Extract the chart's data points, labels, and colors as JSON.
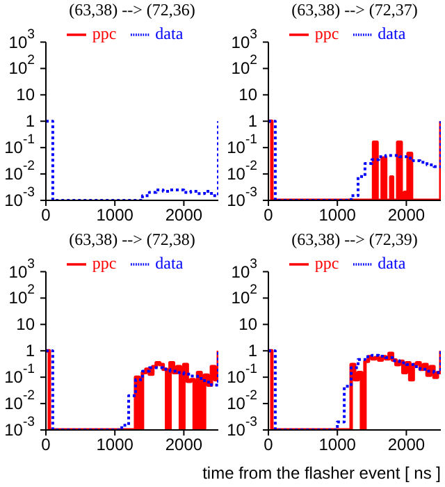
{
  "chart_data": [
    {
      "type": "line",
      "title": "(63,38) --> (72,36)",
      "xlim": [
        0,
        2500
      ],
      "xticks": [
        0,
        1000,
        2000
      ],
      "ylim": [
        0.001,
        1000
      ],
      "yticks": [
        {
          "value": 1000,
          "label": "10$^{3}$"
        },
        {
          "value": 100,
          "label": "10$^{2}$"
        },
        {
          "value": 10,
          "label": "10"
        },
        {
          "value": 1,
          "label": "1"
        },
        {
          "value": 0.1,
          "label": "10$^{-1}$"
        },
        {
          "value": 0.01,
          "label": "10$^{-2}$"
        },
        {
          "value": 0.001,
          "label": "10$^{-3}$"
        }
      ],
      "log": "y",
      "legend": "top",
      "series": [
        {
          "name": "ppc",
          "type": "step",
          "color": "#ff0000",
          "line_style": "solid"
        },
        {
          "name": "data",
          "type": "step",
          "color": "#0000ff",
          "line_style": "dotted",
          "x": [
            0,
            100,
            200,
            300,
            400,
            500,
            600,
            700,
            800,
            900,
            1000,
            1100,
            1200,
            1300,
            1400,
            1500,
            1600,
            1700,
            1800,
            1900,
            2000,
            2100,
            2200,
            2300,
            2400,
            2500
          ],
          "values": [
            1,
            0.001,
            0.001,
            0.001,
            0.001,
            0.001,
            0.001,
            0.001,
            0.001,
            0.001,
            0.001,
            0.001,
            0.001,
            0.001,
            0.0015,
            0.002,
            0.0025,
            0.0022,
            0.0025,
            0.0025,
            0.002,
            0.0022,
            0.0018,
            0.0022,
            0.0015,
            1
          ]
        }
      ]
    },
    {
      "type": "line",
      "title": "(63,38) --> (72,37)",
      "xlim": [
        0,
        2500
      ],
      "xticks": [
        0,
        1000,
        2000
      ],
      "ylim": [
        0.001,
        1000
      ],
      "yticks": [
        {
          "value": 1000,
          "label": "10$^{3}$"
        },
        {
          "value": 100,
          "label": "10$^{2}$"
        },
        {
          "value": 10,
          "label": "10"
        },
        {
          "value": 1,
          "label": "1"
        },
        {
          "value": 0.1,
          "label": "10$^{-1}$"
        },
        {
          "value": 0.01,
          "label": "10$^{-2}$"
        },
        {
          "value": 0.001,
          "label": "10$^{-3}$"
        }
      ],
      "log": "y",
      "legend": "top",
      "series": [
        {
          "name": "ppc",
          "type": "step",
          "color": "#ff0000",
          "line_style": "solid",
          "x": [
            0,
            50,
            1525,
            1575,
            1650,
            1700,
            1775,
            1800,
            1875,
            1925,
            1975,
            2000,
            2025,
            2075,
            2500
          ],
          "values": [
            1,
            0.001,
            0.16,
            0.001,
            0.04,
            0.001,
            0.0076,
            0.001,
            0.16,
            0.001,
            0.002,
            0.001,
            0.06,
            0.001,
            1
          ]
        },
        {
          "name": "data",
          "type": "step",
          "color": "#0000ff",
          "line_style": "dotted",
          "x": [
            0,
            100,
            200,
            300,
            400,
            500,
            600,
            700,
            800,
            900,
            1000,
            1100,
            1200,
            1300,
            1400,
            1500,
            1600,
            1700,
            1800,
            1900,
            2000,
            2100,
            2200,
            2300,
            2400,
            2500
          ],
          "values": [
            1,
            0.001,
            0.001,
            0.001,
            0.001,
            0.001,
            0.001,
            0.001,
            0.001,
            0.001,
            0.001,
            0.001,
            0.0015,
            0.008,
            0.025,
            0.035,
            0.045,
            0.05,
            0.05,
            0.045,
            0.04,
            0.032,
            0.028,
            0.022,
            0.019,
            1
          ]
        }
      ]
    },
    {
      "type": "line",
      "title": "(63,38) --> (72,38)",
      "xlim": [
        0,
        2500
      ],
      "xticks": [
        0,
        1000,
        2000
      ],
      "ylim": [
        0.001,
        1000
      ],
      "yticks": [
        {
          "value": 1000,
          "label": "10$^{3}$"
        },
        {
          "value": 100,
          "label": "10$^{2}$"
        },
        {
          "value": 10,
          "label": "10"
        },
        {
          "value": 1,
          "label": "1"
        },
        {
          "value": 0.1,
          "label": "10$^{-1}$"
        },
        {
          "value": 0.01,
          "label": "10$^{-2}$"
        },
        {
          "value": 0.001,
          "label": "10$^{-3}$"
        }
      ],
      "log": "y",
      "legend": "top",
      "series": [
        {
          "name": "ppc",
          "type": "step",
          "color": "#ff0000",
          "line_style": "solid",
          "x": [
            0,
            50,
            1300,
            1350,
            1400,
            1450,
            1500,
            1550,
            1600,
            1650,
            1700,
            1750,
            1800,
            1850,
            1900,
            1950,
            2000,
            2050,
            2100,
            2150,
            2200,
            2250,
            2300,
            2350,
            2400,
            2450,
            2500
          ],
          "values": [
            1,
            0.001,
            0.1,
            0.001,
            0.15,
            0.2,
            0.13,
            0.25,
            0.35,
            0.3,
            0.2,
            0.001,
            0.35,
            0.15,
            0.25,
            0.001,
            0.3,
            0.07,
            0.08,
            0.001,
            0.15,
            0.001,
            0.12,
            0.05,
            0.25,
            0.08,
            1
          ]
        },
        {
          "name": "data",
          "type": "step",
          "color": "#0000ff",
          "line_style": "dotted",
          "x": [
            0,
            100,
            200,
            300,
            400,
            500,
            600,
            700,
            800,
            900,
            1000,
            1100,
            1200,
            1300,
            1400,
            1500,
            1600,
            1700,
            1800,
            1900,
            2000,
            2100,
            2200,
            2300,
            2400,
            2500
          ],
          "values": [
            1,
            0.001,
            0.001,
            0.001,
            0.001,
            0.001,
            0.001,
            0.001,
            0.001,
            0.001,
            0.001,
            0.0015,
            0.02,
            0.08,
            0.17,
            0.23,
            0.23,
            0.2,
            0.17,
            0.15,
            0.13,
            0.11,
            0.09,
            0.065,
            0.05,
            1
          ]
        }
      ]
    },
    {
      "type": "line",
      "title": "(63,38) --> (72,39)",
      "xlabel": "time from the flasher event [ ns ]",
      "xlim": [
        0,
        2500
      ],
      "xticks": [
        0,
        1000,
        2000
      ],
      "ylim": [
        0.001,
        1000
      ],
      "yticks": [
        {
          "value": 1000,
          "label": "10$^{3}$"
        },
        {
          "value": 100,
          "label": "10$^{2}$"
        },
        {
          "value": 10,
          "label": "10"
        },
        {
          "value": 1,
          "label": "1"
        },
        {
          "value": 0.1,
          "label": "10$^{-1}$"
        },
        {
          "value": 0.01,
          "label": "10$^{-2}$"
        },
        {
          "value": 0.001,
          "label": "10$^{-3}$"
        }
      ],
      "log": "y",
      "legend": "top",
      "series": [
        {
          "name": "ppc",
          "type": "step",
          "color": "#ff0000",
          "line_style": "solid",
          "x": [
            0,
            50,
            1200,
            1250,
            1300,
            1350,
            1400,
            1450,
            1500,
            1550,
            1600,
            1650,
            1700,
            1750,
            1800,
            1850,
            1900,
            1950,
            2000,
            2050,
            2100,
            2150,
            2200,
            2250,
            2300,
            2350,
            2400,
            2450,
            2500
          ],
          "values": [
            1,
            0.001,
            0.3,
            0.08,
            0.15,
            0.001,
            0.4,
            0.6,
            0.5,
            0.55,
            0.45,
            0.6,
            0.5,
            0.8,
            0.45,
            0.3,
            0.4,
            0.15,
            0.35,
            0.08,
            0.3,
            0.35,
            0.2,
            0.3,
            0.12,
            0.25,
            0.1,
            0.15,
            1
          ]
        },
        {
          "name": "data",
          "type": "step",
          "color": "#0000ff",
          "line_style": "dotted",
          "x": [
            0,
            100,
            200,
            300,
            400,
            500,
            600,
            700,
            800,
            900,
            1000,
            1100,
            1200,
            1300,
            1400,
            1500,
            1600,
            1700,
            1800,
            1900,
            2000,
            2100,
            2200,
            2300,
            2400,
            2500
          ],
          "values": [
            1,
            0.001,
            0.001,
            0.001,
            0.001,
            0.001,
            0.001,
            0.001,
            0.001,
            0.001,
            0.002,
            0.045,
            0.23,
            0.47,
            0.6,
            0.67,
            0.62,
            0.55,
            0.42,
            0.35,
            0.3,
            0.25,
            0.2,
            0.17,
            0.15,
            1
          ]
        }
      ]
    }
  ]
}
